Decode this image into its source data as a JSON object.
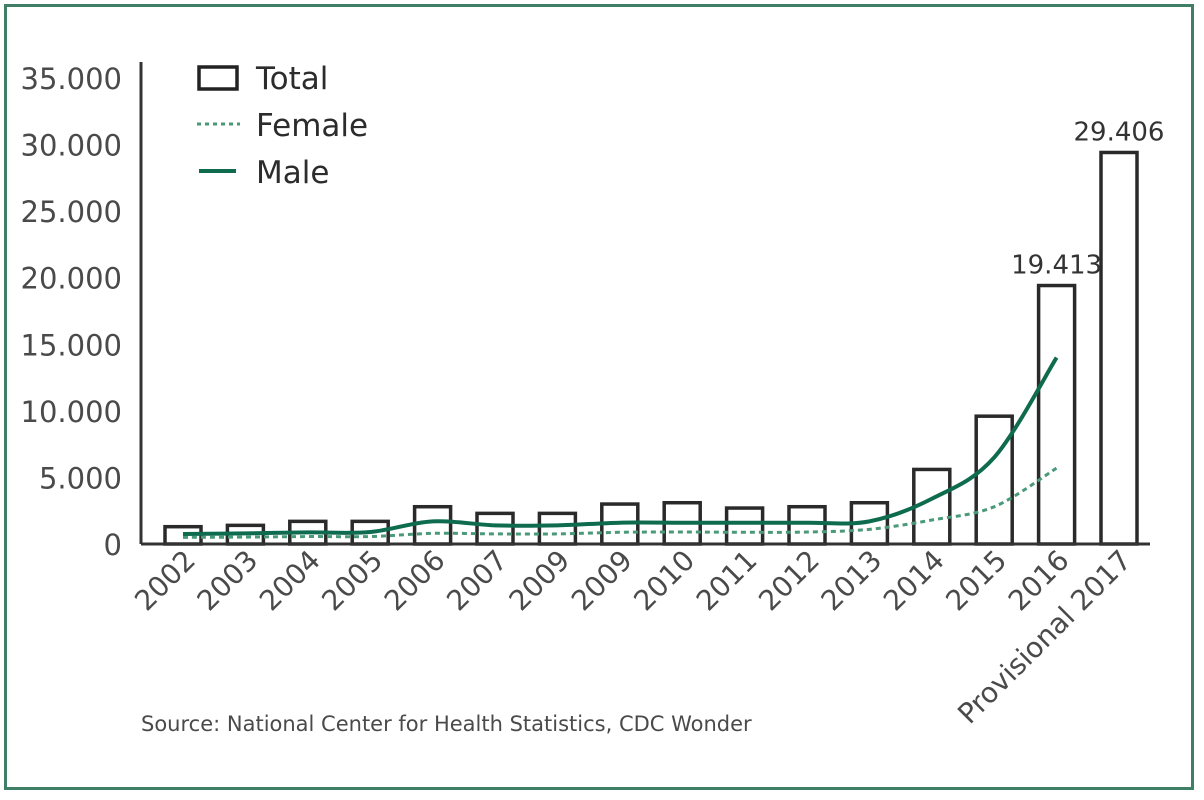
{
  "chart_data": {
    "type": "bar",
    "title": "",
    "xlabel": "",
    "ylabel": "",
    "ylim": [
      0,
      35000
    ],
    "yticks": [
      "0",
      "5.000",
      "10.000",
      "15.000",
      "20.000",
      "25.000",
      "30.000",
      "35.000"
    ],
    "categories": [
      "2002",
      "2003",
      "2004",
      "2005",
      "2006",
      "2007",
      "2009",
      "2009",
      "2010",
      "2011",
      "2012",
      "2013",
      "2014",
      "2015",
      "2016",
      "Provisional 2017"
    ],
    "series": [
      {
        "name": "Total",
        "kind": "bar",
        "values": [
          1300,
          1400,
          1700,
          1700,
          2800,
          2300,
          2300,
          3000,
          3100,
          2700,
          2800,
          3100,
          5600,
          9600,
          19413,
          29406
        ]
      },
      {
        "name": "Female",
        "kind": "line",
        "style": "dashed",
        "color": "#4a9a7a",
        "values": [
          500,
          520,
          560,
          560,
          800,
          760,
          760,
          880,
          900,
          880,
          900,
          1100,
          1800,
          2800,
          5700,
          null
        ]
      },
      {
        "name": "Male",
        "kind": "line",
        "style": "solid",
        "color": "#0f6b4e",
        "values": [
          750,
          800,
          870,
          900,
          1700,
          1400,
          1400,
          1600,
          1600,
          1600,
          1600,
          1700,
          3400,
          6500,
          14000,
          null
        ]
      }
    ],
    "data_labels": [
      {
        "category_index": 14,
        "text": "19.413"
      },
      {
        "category_index": 15,
        "text": "29.406"
      }
    ],
    "legend": {
      "position": "top-left",
      "entries": [
        "Total",
        "Female",
        "Male"
      ]
    },
    "grid": false,
    "source": "Source: National Center for Health Statistics, CDC Wonder"
  }
}
